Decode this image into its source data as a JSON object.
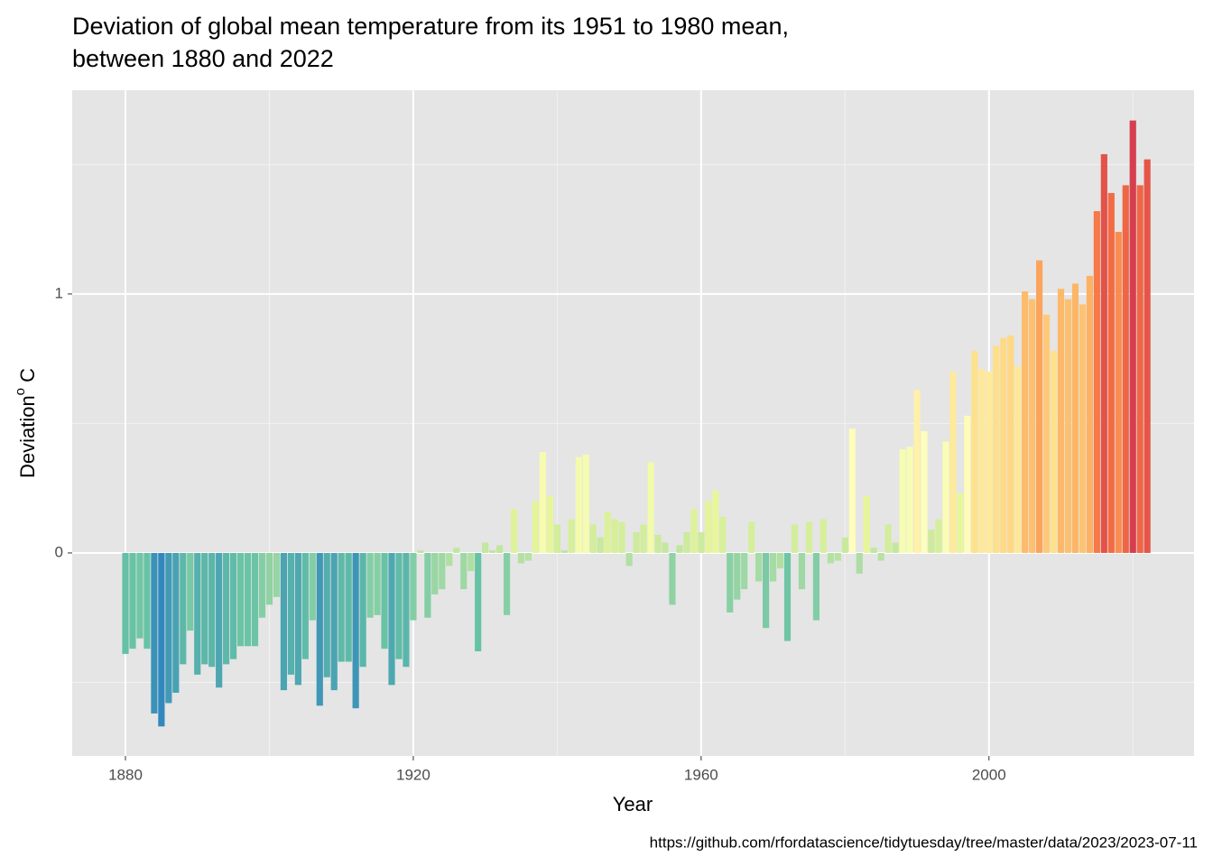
{
  "chart_data": {
    "type": "bar",
    "title": [
      "Deviation of global mean temperature from its 1951 to 1980 mean,",
      "between 1880 and 2022"
    ],
    "xlabel": "Year",
    "ylabel": [
      "Deviation",
      "o",
      " C"
    ],
    "caption": "https://github.com/rfordatascience/tidytuesday/tree/master/data/2023/2023-07-11",
    "x": [
      1880,
      1881,
      1882,
      1883,
      1884,
      1885,
      1886,
      1887,
      1888,
      1889,
      1890,
      1891,
      1892,
      1893,
      1894,
      1895,
      1896,
      1897,
      1898,
      1899,
      1900,
      1901,
      1902,
      1903,
      1904,
      1905,
      1906,
      1907,
      1908,
      1909,
      1910,
      1911,
      1912,
      1913,
      1914,
      1915,
      1916,
      1917,
      1918,
      1919,
      1920,
      1921,
      1922,
      1923,
      1924,
      1925,
      1926,
      1927,
      1928,
      1929,
      1930,
      1931,
      1932,
      1933,
      1934,
      1935,
      1936,
      1937,
      1938,
      1939,
      1940,
      1941,
      1942,
      1943,
      1944,
      1945,
      1946,
      1947,
      1948,
      1949,
      1950,
      1951,
      1952,
      1953,
      1954,
      1955,
      1956,
      1957,
      1958,
      1959,
      1960,
      1961,
      1962,
      1963,
      1964,
      1965,
      1966,
      1967,
      1968,
      1969,
      1970,
      1971,
      1972,
      1973,
      1974,
      1975,
      1976,
      1977,
      1978,
      1979,
      1980,
      1981,
      1982,
      1983,
      1984,
      1985,
      1986,
      1987,
      1988,
      1989,
      1990,
      1991,
      1992,
      1993,
      1994,
      1995,
      1996,
      1997,
      1998,
      1999,
      2000,
      2001,
      2002,
      2003,
      2004,
      2005,
      2006,
      2007,
      2008,
      2009,
      2010,
      2011,
      2012,
      2013,
      2014,
      2015,
      2016,
      2017,
      2018,
      2019,
      2020,
      2021,
      2022
    ],
    "values": [
      -0.39,
      -0.37,
      -0.33,
      -0.37,
      -0.62,
      -0.67,
      -0.58,
      -0.54,
      -0.43,
      -0.3,
      -0.47,
      -0.43,
      -0.44,
      -0.52,
      -0.43,
      -0.41,
      -0.36,
      -0.36,
      -0.36,
      -0.25,
      -0.2,
      -0.17,
      -0.53,
      -0.47,
      -0.51,
      -0.41,
      -0.26,
      -0.59,
      -0.48,
      -0.53,
      -0.42,
      -0.42,
      -0.6,
      -0.44,
      -0.25,
      -0.24,
      -0.37,
      -0.51,
      -0.41,
      -0.44,
      -0.26,
      0.01,
      -0.25,
      -0.16,
      -0.14,
      -0.05,
      0.02,
      -0.14,
      -0.07,
      -0.38,
      0.04,
      0.01,
      0.03,
      -0.24,
      0.17,
      -0.04,
      -0.03,
      0.2,
      0.39,
      0.22,
      0.11,
      0.01,
      0.13,
      0.37,
      0.38,
      0.11,
      0.06,
      0.16,
      0.13,
      0.12,
      -0.05,
      0.08,
      0.11,
      0.35,
      0.07,
      0.04,
      -0.2,
      0.03,
      0.08,
      0.17,
      0.08,
      0.2,
      0.24,
      0.14,
      -0.23,
      -0.18,
      -0.14,
      0.12,
      -0.11,
      -0.29,
      -0.11,
      -0.06,
      -0.34,
      0.11,
      -0.14,
      0.12,
      -0.26,
      0.13,
      -0.04,
      -0.03,
      0.06,
      0.48,
      -0.08,
      0.22,
      0.02,
      -0.03,
      0.11,
      0.04,
      0.4,
      0.41,
      0.63,
      0.47,
      0.09,
      0.13,
      0.43,
      0.7,
      0.23,
      0.53,
      0.78,
      0.71,
      0.7,
      0.8,
      0.83,
      0.84,
      0.72,
      1.01,
      0.98,
      1.13,
      0.92,
      0.78,
      1.02,
      0.98,
      1.04,
      0.96,
      1.07,
      1.32,
      1.54,
      1.39,
      1.24,
      1.42,
      1.67,
      1.42,
      1.52
    ],
    "colors": [
      "#3288bd",
      "#66c2a5",
      "#abdda4",
      "#e6f598",
      "#ffffbf",
      "#fee08b",
      "#fdae61",
      "#f46d43",
      "#d53e4f"
    ],
    "xlim": [
      1872.6,
      2028.5
    ],
    "xticks": [
      1880,
      1920,
      1960,
      2000
    ],
    "xminor": [
      1900,
      1940,
      1980,
      2020
    ],
    "ylim": [
      -0.784,
      1.787
    ],
    "yticks": [
      0,
      1
    ],
    "yminor": [
      -0.5,
      0.5,
      1.5
    ],
    "grid": true
  }
}
